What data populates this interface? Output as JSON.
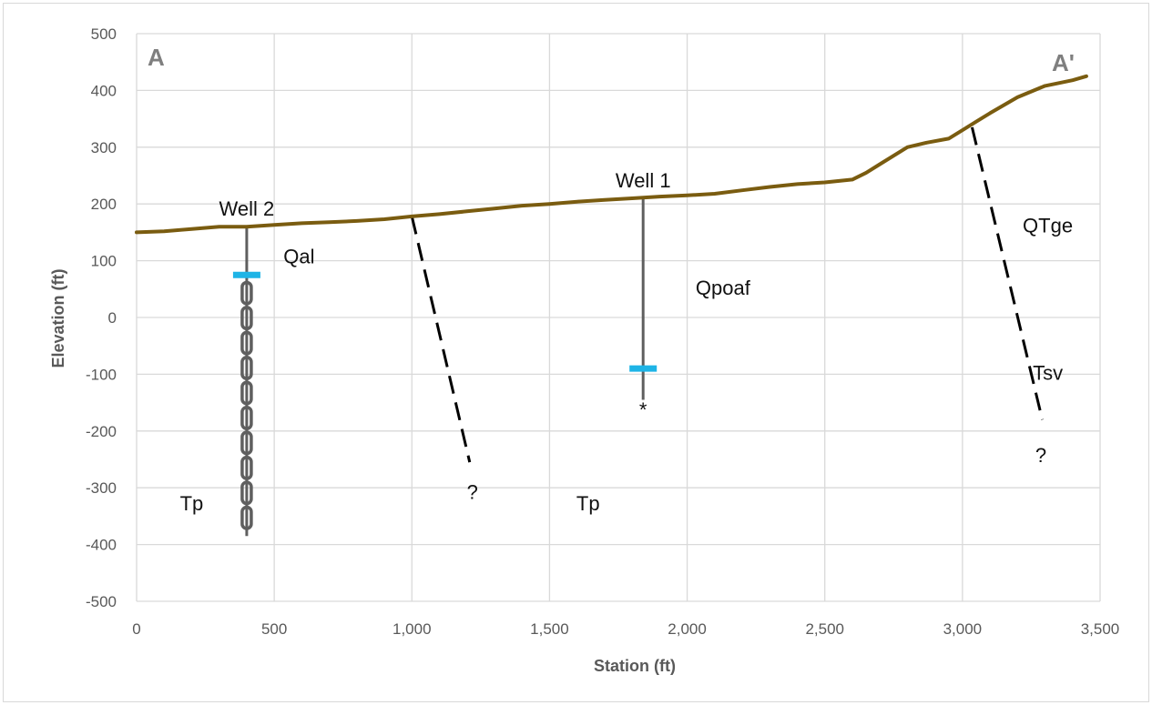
{
  "chart_data": {
    "type": "line",
    "xlabel": "Station (ft)",
    "ylabel": "Elevation (ft)",
    "xlim": [
      0,
      3500
    ],
    "ylim": [
      -500,
      500
    ],
    "x_ticks": [
      0,
      500,
      1000,
      1500,
      2000,
      2500,
      3000,
      3500
    ],
    "x_tick_labels": [
      "0",
      "500",
      "1,000",
      "1,500",
      "2,000",
      "2,500",
      "3,000",
      "3,500"
    ],
    "y_ticks": [
      500,
      400,
      300,
      200,
      100,
      0,
      -100,
      -200,
      -300,
      -400,
      -500
    ],
    "y_tick_labels": [
      "500",
      "400",
      "300",
      "200",
      "100",
      "0",
      "-100",
      "-200",
      "-300",
      "-400",
      "-500"
    ],
    "grid": true,
    "ground_surface": {
      "color": "#7a5c10",
      "x": [
        0,
        100,
        200,
        300,
        400,
        500,
        600,
        700,
        800,
        900,
        1000,
        1100,
        1200,
        1300,
        1400,
        1500,
        1600,
        1700,
        1800,
        1900,
        2000,
        2100,
        2200,
        2300,
        2400,
        2500,
        2600,
        2650,
        2700,
        2800,
        2870,
        2950,
        3000,
        3050,
        3100,
        3200,
        3250,
        3300,
        3350,
        3400,
        3450
      ],
      "y": [
        150,
        152,
        156,
        160,
        160,
        163,
        166,
        168,
        170,
        173,
        178,
        182,
        187,
        192,
        197,
        200,
        204,
        207,
        210,
        213,
        215,
        218,
        224,
        230,
        235,
        238,
        243,
        255,
        270,
        300,
        308,
        315,
        330,
        345,
        360,
        388,
        398,
        408,
        413,
        418,
        425
      ]
    },
    "wells": [
      {
        "name": "Well 2",
        "x": 400,
        "top": 160,
        "bottom": -385,
        "water_level": 75,
        "screen_top": 65,
        "screen_bottom": -375,
        "screened": true
      },
      {
        "name": "Well 1",
        "x": 1840,
        "top": 210,
        "bottom": -145,
        "water_level": -90,
        "marker": "*",
        "screened": false
      }
    ],
    "faults": [
      {
        "x1": 1000,
        "y1": 178,
        "x2": 1210,
        "y2": -255,
        "query": "?"
      },
      {
        "x1": 3035,
        "y1": 335,
        "x2": 3290,
        "y2": -180,
        "query": "?"
      }
    ],
    "unit_labels": [
      {
        "text": "Qal",
        "x": 590,
        "y": 95
      },
      {
        "text": "Qpoaf",
        "x": 2130,
        "y": 40
      },
      {
        "text": "QTge",
        "x": 3310,
        "y": 150
      },
      {
        "text": "Tsv",
        "x": 3310,
        "y": -110
      },
      {
        "text": "Tp",
        "x": 200,
        "y": -340
      },
      {
        "text": "Tp",
        "x": 1640,
        "y": -340
      },
      {
        "text": "?",
        "x": 1220,
        "y": -320
      },
      {
        "text": "?",
        "x": 3285,
        "y": -255
      },
      {
        "text": "*",
        "x": 1840,
        "y": -175
      }
    ],
    "corner_labels": {
      "left": "A",
      "right": "A'"
    },
    "colors": {
      "water_level": "#1eb4e6",
      "well": "#5f5f5f",
      "grid": "#d9d9d9",
      "fault": "#000000"
    }
  }
}
